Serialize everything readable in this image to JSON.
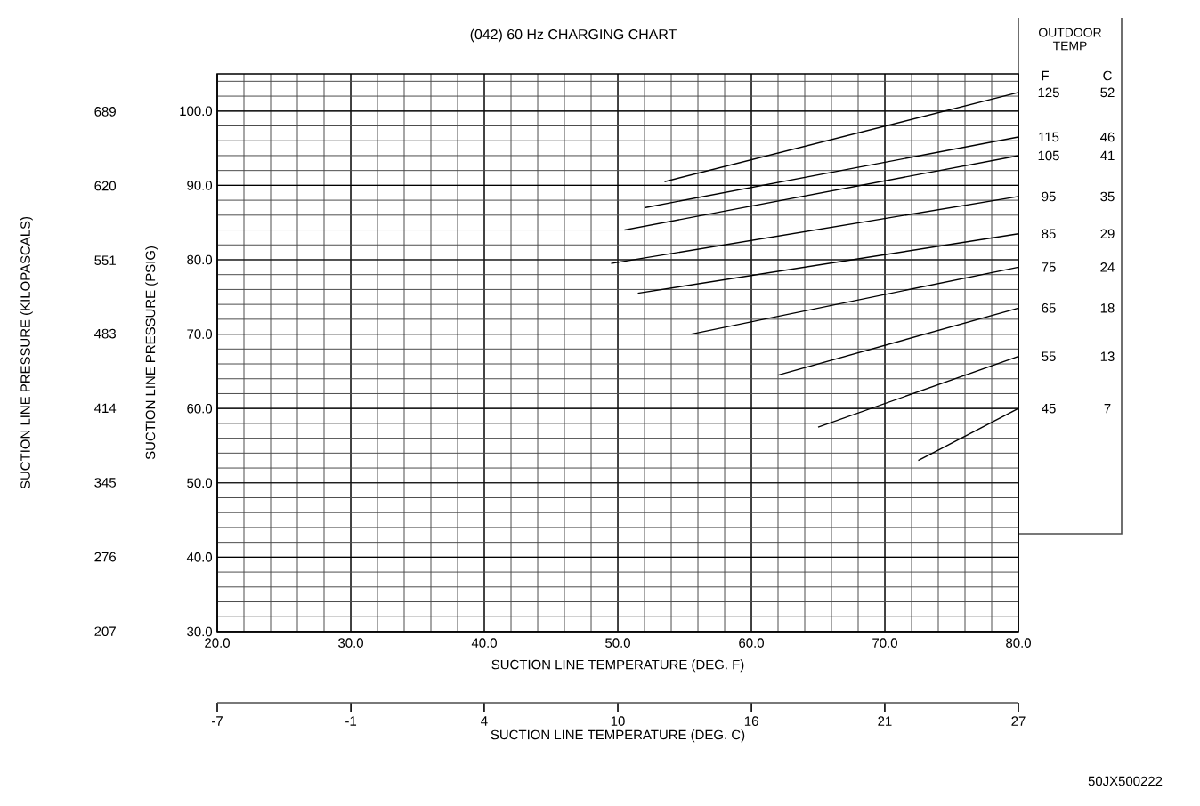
{
  "chart_data": {
    "type": "line",
    "title": "(042) 60 Hz CHARGING CHART",
    "xlabel": "SUCTION LINE TEMPERATURE (DEG. F)",
    "ylabel": "SUCTION LINE PRESSURE (PSIG)",
    "y2label": "SUCTION LINE PRESSURE (KILOPASCALS)",
    "x2label": "SUCTION LINE TEMPERATURE (DEG. C)",
    "legend_title": "OUTDOOR TEMP",
    "xlim": [
      20,
      80
    ],
    "xticks": [
      {
        "value": 20,
        "label": "20.0"
      },
      {
        "value": 30,
        "label": "30.0"
      },
      {
        "value": 40,
        "label": "40.0"
      },
      {
        "value": 50,
        "label": "50.0"
      },
      {
        "value": 60,
        "label": "60.0"
      },
      {
        "value": 70,
        "label": "70.0"
      },
      {
        "value": 80,
        "label": "80.0"
      }
    ],
    "ylim": [
      30,
      105
    ],
    "yticks": [
      {
        "value": 30,
        "label": "30.0"
      },
      {
        "value": 40,
        "label": "40.0"
      },
      {
        "value": 50,
        "label": "50.0"
      },
      {
        "value": 60,
        "label": "60.0"
      },
      {
        "value": 70,
        "label": "70.0"
      },
      {
        "value": 80,
        "label": "80.0"
      },
      {
        "value": 90,
        "label": "90.0"
      },
      {
        "value": 100,
        "label": "100.0"
      }
    ],
    "y2lim": [
      206.8,
      724
    ],
    "y2ticks": [
      207,
      276,
      345,
      414,
      483,
      551,
      620,
      689
    ],
    "x2lim": [
      -6.67,
      26.67
    ],
    "x2ticks": [
      {
        "value": -6.67,
        "label": "-7"
      },
      {
        "value": -1.11,
        "label": "-1"
      },
      {
        "value": 4.44,
        "label": "4"
      },
      {
        "value": 10,
        "label": "10"
      },
      {
        "value": 15.56,
        "label": "16"
      },
      {
        "value": 21.11,
        "label": "21"
      },
      {
        "value": 26.67,
        "label": "27"
      }
    ],
    "grid": true,
    "marker": "none",
    "line_style": "solid",
    "series": [
      {
        "name": "125",
        "color": "#000000",
        "x": [
          53.5,
          80
        ],
        "values": [
          90.5,
          102.5
        ]
      },
      {
        "name": "115",
        "color": "#000000",
        "x": [
          52,
          80
        ],
        "values": [
          87,
          96.5
        ]
      },
      {
        "name": "105",
        "color": "#000000",
        "x": [
          50.5,
          80
        ],
        "values": [
          84,
          94
        ]
      },
      {
        "name": "95",
        "color": "#000000",
        "x": [
          49.5,
          80
        ],
        "values": [
          79.5,
          88.5
        ]
      },
      {
        "name": "85",
        "color": "#000000",
        "x": [
          51.5,
          80
        ],
        "values": [
          75.5,
          83.5
        ]
      },
      {
        "name": "75",
        "color": "#000000",
        "x": [
          55.5,
          80
        ],
        "values": [
          70,
          79
        ]
      },
      {
        "name": "65",
        "color": "#000000",
        "x": [
          62,
          80
        ],
        "values": [
          64.5,
          73.5
        ]
      },
      {
        "name": "55",
        "color": "#000000",
        "x": [
          65,
          80
        ],
        "values": [
          57.5,
          67
        ]
      },
      {
        "name": "45",
        "color": "#000000",
        "x": [
          72.5,
          80
        ],
        "values": [
          53,
          60
        ]
      }
    ],
    "annotations": [
      "F",
      "C",
      "52",
      "46",
      "41",
      "35",
      "29",
      "24",
      "18",
      "13",
      "7",
      "50JX500222"
    ]
  }
}
